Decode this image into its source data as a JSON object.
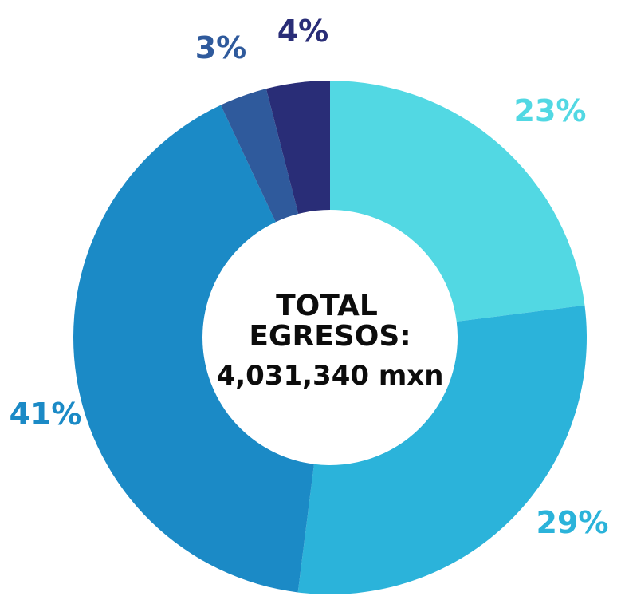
{
  "chart_data": {
    "type": "pie",
    "variant": "donut",
    "start_angle_deg": 0,
    "direction": "clockwise",
    "categories": [
      "",
      "",
      "",
      "",
      ""
    ],
    "values": [
      23,
      29,
      41,
      3,
      4
    ],
    "labels": [
      "23%",
      "29%",
      "41%",
      "3%",
      "4%"
    ],
    "colors": [
      "#52d8e3",
      "#2bb3da",
      "#1b8ac6",
      "#2f5a9c",
      "#292d77"
    ],
    "label_colors": [
      "#52d8e3",
      "#2bb3da",
      "#1b8ac6",
      "#2f5a9c",
      "#292d77"
    ],
    "center_text": [
      "TOTAL",
      "EGRESOS:",
      "4,031,340 mxn"
    ],
    "legend": "none",
    "grid": false
  }
}
